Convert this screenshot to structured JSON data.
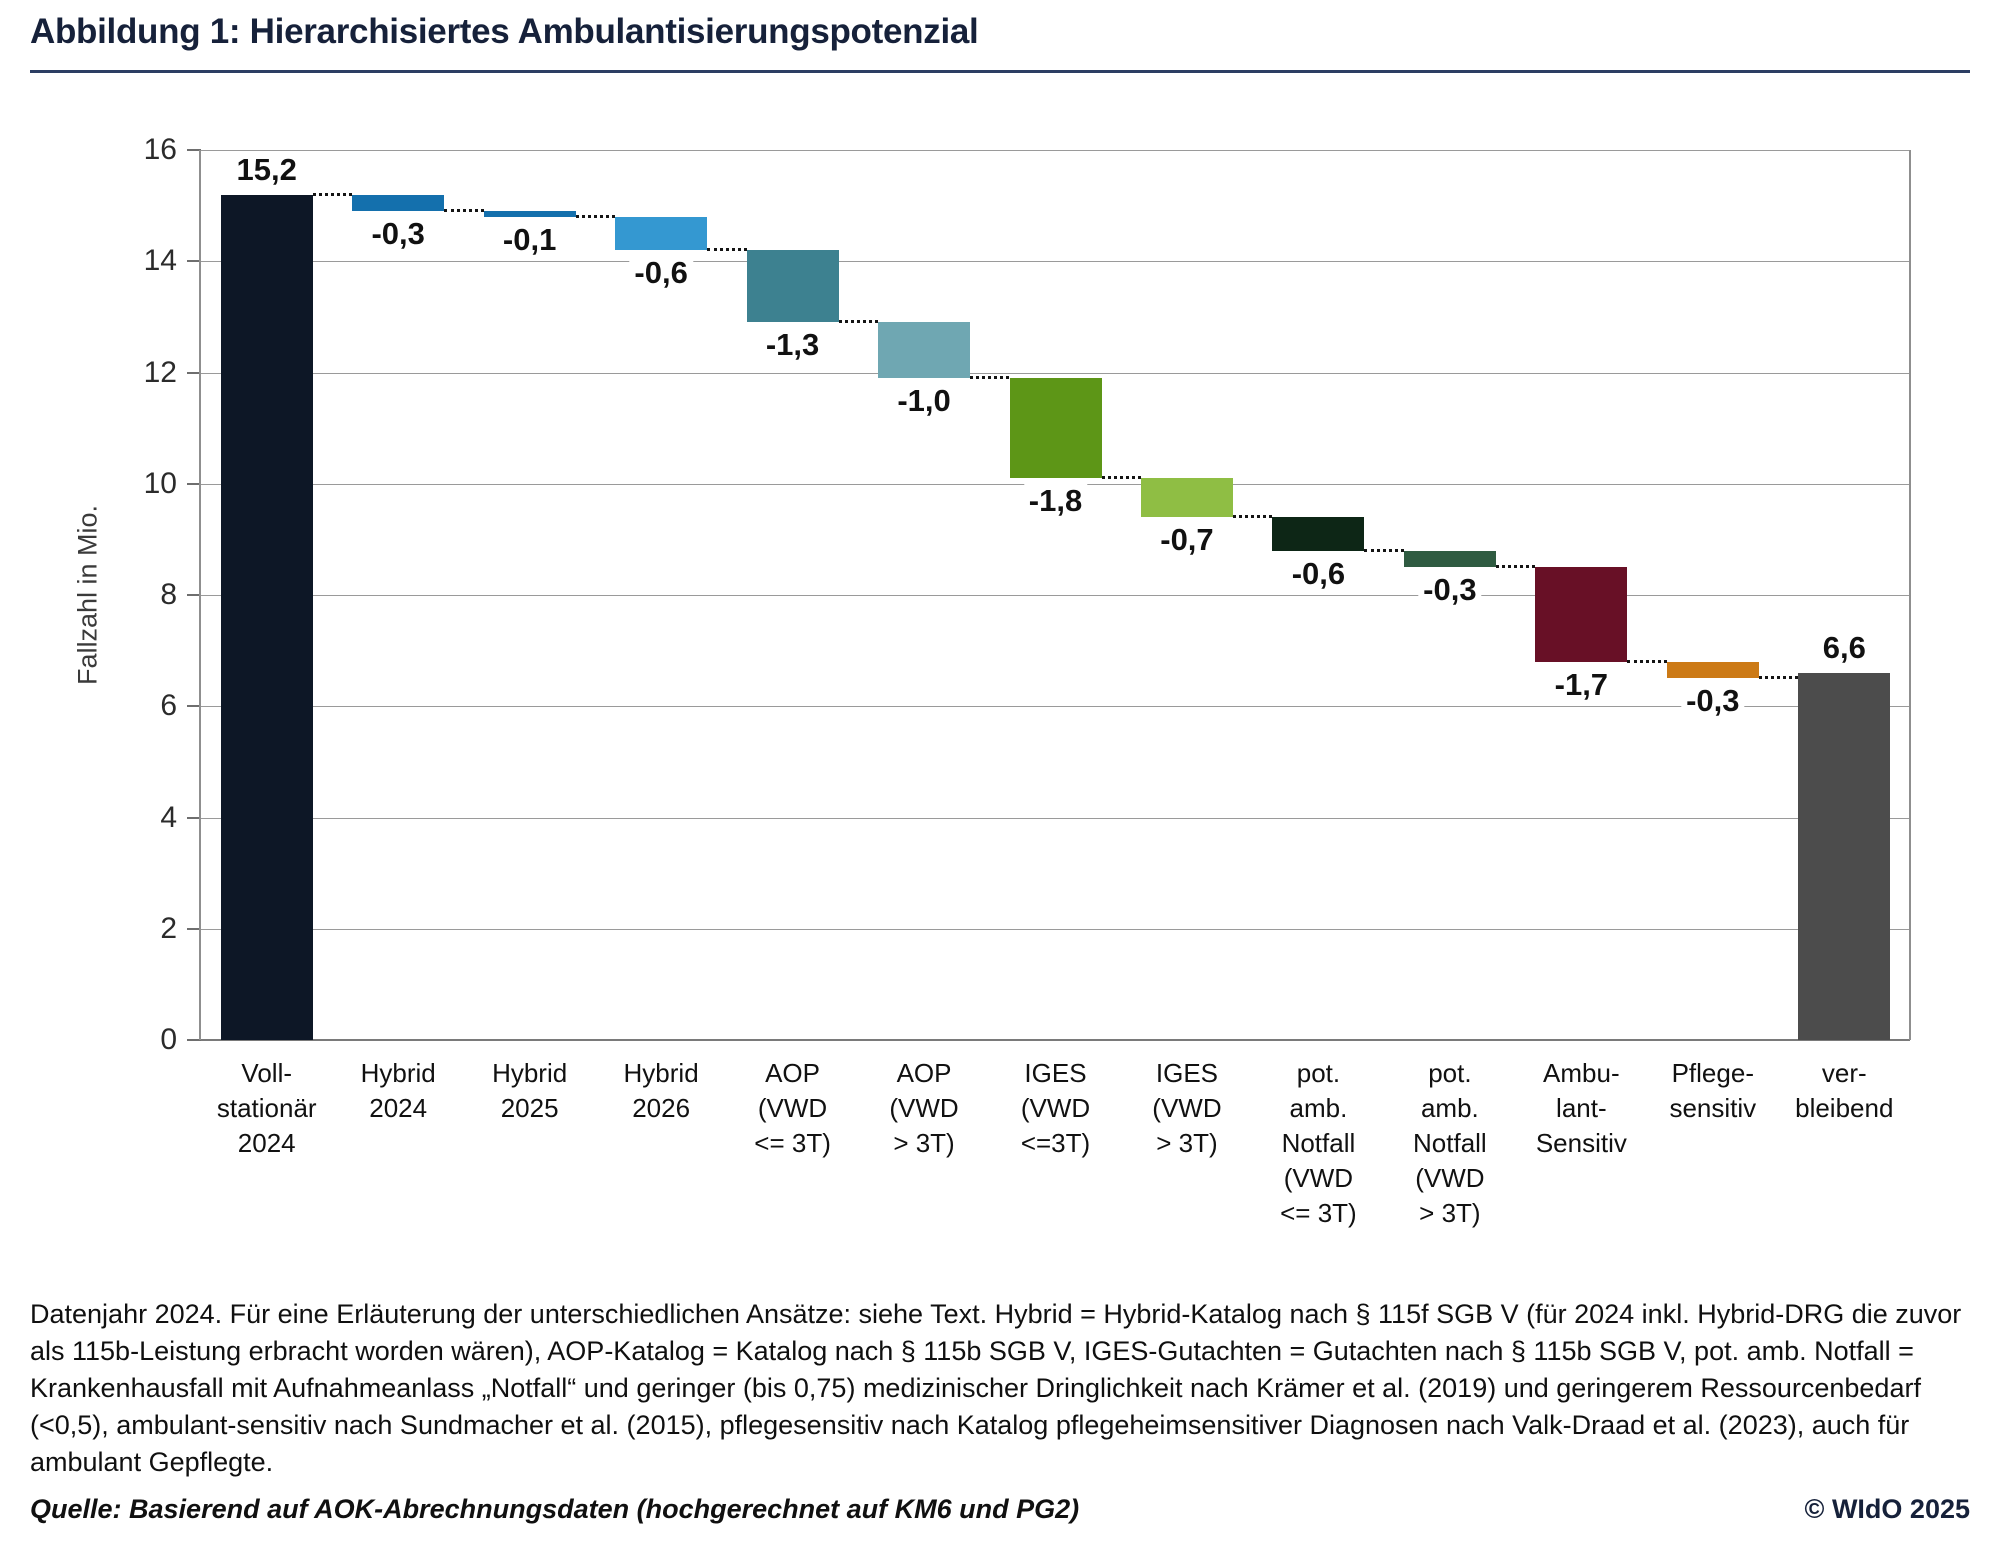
{
  "header": {
    "title": "Abbildung 1: Hierarchisiertes Ambulantisierungspotenzial"
  },
  "chart_data": {
    "type": "bar",
    "subtype": "waterfall",
    "title": "Abbildung 1: Hierarchisiertes Ambulantisierungspotenzial",
    "xlabel": "",
    "ylabel": "Fallzahl in Mio.",
    "ylim": [
      0,
      16
    ],
    "ytick_step": 2,
    "grid": true,
    "legend": "none",
    "bars": [
      {
        "category": "Voll-stationär 2024",
        "category_lines": [
          "Voll-",
          "stationär",
          "2024"
        ],
        "label": "15,2",
        "value": 15.2,
        "start": 0,
        "end": 15.2,
        "kind": "total",
        "color": "#0d1726"
      },
      {
        "category": "Hybrid 2024",
        "category_lines": [
          "Hybrid",
          "2024"
        ],
        "label": "-0,3",
        "value": -0.3,
        "start": 15.2,
        "end": 14.9,
        "kind": "delta",
        "color": "#1470ad"
      },
      {
        "category": "Hybrid 2025",
        "category_lines": [
          "Hybrid",
          "2025"
        ],
        "label": "-0,1",
        "value": -0.1,
        "start": 14.9,
        "end": 14.8,
        "kind": "delta",
        "color": "#1470ad"
      },
      {
        "category": "Hybrid 2026",
        "category_lines": [
          "Hybrid",
          "2026"
        ],
        "label": "-0,6",
        "value": -0.6,
        "start": 14.8,
        "end": 14.2,
        "kind": "delta",
        "color": "#3498d1"
      },
      {
        "category": "AOP (VWD <= 3T)",
        "category_lines": [
          "AOP",
          "(VWD",
          "<= 3T)"
        ],
        "label": "-1,3",
        "value": -1.3,
        "start": 14.2,
        "end": 12.9,
        "kind": "delta",
        "color": "#3d8190"
      },
      {
        "category": "AOP (VWD > 3T)",
        "category_lines": [
          "AOP",
          "(VWD",
          "> 3T)"
        ],
        "label": "-1,0",
        "value": -1.0,
        "start": 12.9,
        "end": 11.9,
        "kind": "delta",
        "color": "#6fa7b2"
      },
      {
        "category": "IGES (VWD <=3T)",
        "category_lines": [
          "IGES",
          "(VWD",
          "<=3T)"
        ],
        "label": "-1,8",
        "value": -1.8,
        "start": 11.9,
        "end": 10.1,
        "kind": "delta",
        "color": "#5d9617"
      },
      {
        "category": "IGES (VWD > 3T)",
        "category_lines": [
          "IGES",
          "(VWD",
          "> 3T)"
        ],
        "label": "-0,7",
        "value": -0.7,
        "start": 10.1,
        "end": 9.4,
        "kind": "delta",
        "color": "#8fbe44"
      },
      {
        "category": "pot. amb. Notfall (VWD <= 3T)",
        "category_lines": [
          "pot.",
          "amb.",
          "Notfall",
          "(VWD",
          "<= 3T)"
        ],
        "label": "-0,6",
        "value": -0.6,
        "start": 9.4,
        "end": 8.8,
        "kind": "delta",
        "color": "#0d2616"
      },
      {
        "category": "pot. amb. Notfall (VWD > 3T)",
        "category_lines": [
          "pot.",
          "amb.",
          "Notfall",
          "(VWD",
          "> 3T)"
        ],
        "label": "-0,3",
        "value": -0.3,
        "start": 8.8,
        "end": 8.5,
        "kind": "delta",
        "color": "#2f5b41"
      },
      {
        "category": "Ambulant-Sensitiv",
        "category_lines": [
          "Ambu-",
          "lant-",
          "Sensitiv"
        ],
        "label": "-1,7",
        "value": -1.7,
        "start": 8.5,
        "end": 6.8,
        "kind": "delta",
        "color": "#681026"
      },
      {
        "category": "Pflegesensitiv",
        "category_lines": [
          "Pflege-",
          "sensitiv"
        ],
        "label": "-0,3",
        "value": -0.3,
        "start": 6.8,
        "end": 6.5,
        "kind": "delta",
        "color": "#cc7a16"
      },
      {
        "category": "verbleibend",
        "category_lines": [
          "ver-",
          "bleibend"
        ],
        "label": "6,6",
        "value": 6.6,
        "start": 0,
        "end": 6.6,
        "kind": "total",
        "color": "#4c4c4c"
      }
    ]
  },
  "footnote": {
    "text": "Datenjahr 2024. Für eine Erläuterung der unterschiedlichen Ansätze: siehe Text. Hybrid = Hybrid-Katalog nach § 115f SGB V (für 2024 inkl. Hybrid-DRG die zuvor als 115b-Leistung erbracht worden wären), AOP-Katalog = Katalog nach § 115b SGB V, IGES-Gutachten = Gutachten nach § 115b SGB V, pot. amb. Notfall = Krankenhausfall mit Aufnahmeanlass „Notfall“ und geringer (bis 0,75) medizinischer Dringlichkeit nach Krämer et al. (2019) und geringerem Ressourcenbedarf (<0,5), ambulant-sensitiv nach Sundmacher et al. (2015), pflegesensitiv nach Katalog pflegeheimsensitiver Diagnosen nach Valk-Draad et al. (2023), auch für ambulant Gepflegte."
  },
  "source": {
    "text": "Quelle: Basierend auf AOK-Abrechnungsdaten (hochgerechnet auf KM6 und PG2)"
  },
  "copyright": {
    "text": "© WIdO 2025"
  },
  "colors": {
    "accent_navy": "#16213a",
    "title_rule": "#2c3e63",
    "grid": "#9a9a9a",
    "axis": "#7a7a7a",
    "connector": "#141414"
  }
}
